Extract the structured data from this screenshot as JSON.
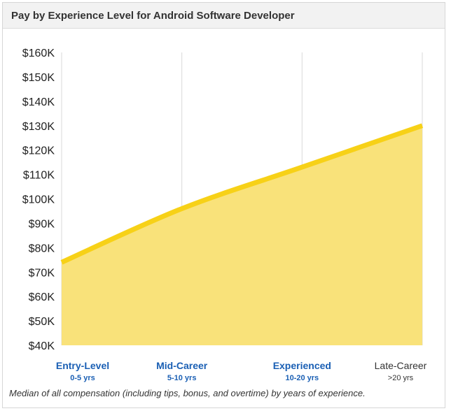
{
  "header": {
    "title": "Pay by Experience Level for Android Software Developer"
  },
  "chart_data": {
    "type": "area",
    "categories": [
      {
        "label": "Entry-Level",
        "sublabel": "0-5 yrs",
        "link": true
      },
      {
        "label": "Mid-Career",
        "sublabel": "5-10 yrs",
        "link": true
      },
      {
        "label": "Experienced",
        "sublabel": "10-20 yrs",
        "link": true
      },
      {
        "label": "Late-Career",
        "sublabel": ">20 yrs",
        "link": false
      }
    ],
    "x": [
      0,
      1,
      2,
      3
    ],
    "values": [
      74000,
      96000,
      113000,
      130000
    ],
    "ylim": [
      40000,
      160000
    ],
    "yticks": [
      160000,
      150000,
      140000,
      130000,
      120000,
      110000,
      100000,
      90000,
      80000,
      70000,
      60000,
      50000,
      40000
    ],
    "ytick_labels": [
      "$160K",
      "$150K",
      "$140K",
      "$130K",
      "$120K",
      "$110K",
      "$100K",
      "$90K",
      "$80K",
      "$70K",
      "$60K",
      "$50K",
      "$40K"
    ],
    "grid": "vertical",
    "colors": {
      "line": "#f7d117",
      "fill": "#f9e27a",
      "link_label": "#1a5fb4",
      "plain_label": "#333333",
      "grid": "#d9d9d9"
    }
  },
  "caption": "Median of all compensation (including tips, bonus, and overtime) by years of experience."
}
